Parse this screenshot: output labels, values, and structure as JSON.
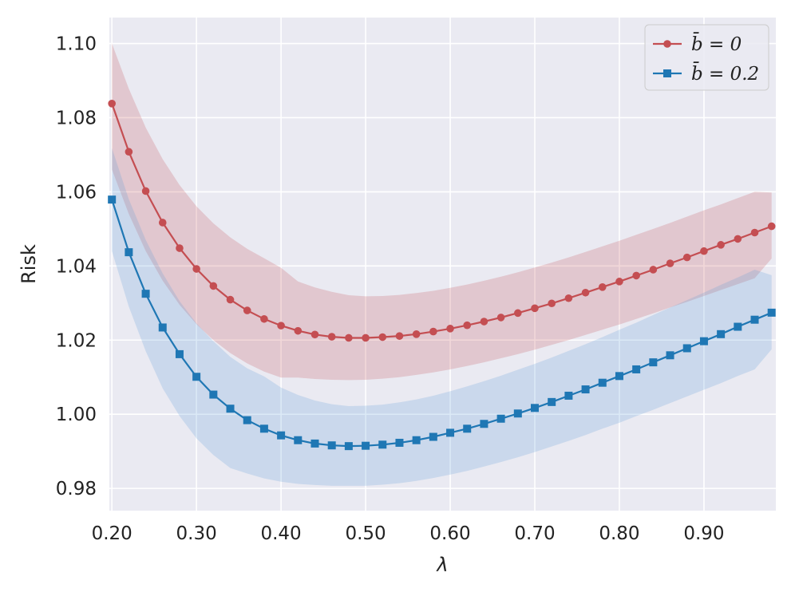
{
  "chart_data": {
    "type": "line",
    "title": "",
    "xlabel": "λ",
    "ylabel": "Risk",
    "xlim": [
      0.197,
      0.985
    ],
    "ylim": [
      0.974,
      1.107
    ],
    "xticks": [
      0.2,
      0.3,
      0.4,
      0.5,
      0.6,
      0.7,
      0.8,
      0.9
    ],
    "xtick_labels": [
      "0.20",
      "0.30",
      "0.40",
      "0.50",
      "0.60",
      "0.70",
      "0.80",
      "0.90"
    ],
    "yticks": [
      0.98,
      1.0,
      1.02,
      1.04,
      1.06,
      1.08,
      1.1
    ],
    "ytick_labels": [
      "0.98",
      "1.00",
      "1.02",
      "1.04",
      "1.06",
      "1.08",
      "1.10"
    ],
    "grid": true,
    "legend_position": "top-right",
    "x": [
      0.2,
      0.22,
      0.24,
      0.26,
      0.28,
      0.3,
      0.32,
      0.34,
      0.36,
      0.38,
      0.4,
      0.42,
      0.44,
      0.46,
      0.48,
      0.5,
      0.52,
      0.54,
      0.56,
      0.58,
      0.6,
      0.62,
      0.64,
      0.66,
      0.68,
      0.7,
      0.72,
      0.74,
      0.76,
      0.78,
      0.8,
      0.82,
      0.84,
      0.86,
      0.88,
      0.9,
      0.92,
      0.94,
      0.96,
      0.98
    ],
    "series": [
      {
        "name": "b̄ = 0",
        "legend_prefix": "b̄",
        "legend_suffix": "= 0",
        "color": "#c44e52",
        "band_color": "#c44e52",
        "marker": "circle",
        "values": [
          1.0838,
          1.0708,
          1.0602,
          1.0517,
          1.0448,
          1.0392,
          1.0346,
          1.0309,
          1.028,
          1.0257,
          1.0239,
          1.0225,
          1.0215,
          1.0209,
          1.0206,
          1.0206,
          1.0208,
          1.0211,
          1.0216,
          1.0223,
          1.0231,
          1.024,
          1.025,
          1.0261,
          1.0273,
          1.0286,
          1.0299,
          1.0313,
          1.0328,
          1.0343,
          1.0358,
          1.0374,
          1.039,
          1.0407,
          1.0423,
          1.044,
          1.0457,
          1.0473,
          1.049,
          1.0507
        ],
        "lower": [
          1.066,
          1.054,
          1.044,
          1.036,
          1.0295,
          1.0243,
          1.02,
          1.0165,
          1.0137,
          1.0115,
          1.0099,
          1.0099,
          1.0095,
          1.0093,
          1.0092,
          1.0093,
          1.0096,
          1.01,
          1.0106,
          1.0113,
          1.0121,
          1.013,
          1.014,
          1.0151,
          1.0162,
          1.0174,
          1.0187,
          1.02,
          1.0214,
          1.0228,
          1.0242,
          1.0257,
          1.0272,
          1.0288,
          1.0303,
          1.0319,
          1.0335,
          1.0351,
          1.0367,
          1.042
        ],
        "upper": [
          1.1,
          1.0878,
          1.0773,
          1.0688,
          1.0618,
          1.0561,
          1.0515,
          1.0477,
          1.0446,
          1.0421,
          1.0395,
          1.0358,
          1.0342,
          1.033,
          1.0321,
          1.0318,
          1.0319,
          1.0322,
          1.0327,
          1.0333,
          1.0341,
          1.035,
          1.036,
          1.0371,
          1.0383,
          1.0396,
          1.0409,
          1.0423,
          1.0438,
          1.0453,
          1.0468,
          1.0484,
          1.05,
          1.0516,
          1.0533,
          1.055,
          1.0566,
          1.0583,
          1.06,
          1.0598
        ]
      },
      {
        "name": "b̄ = 0.2",
        "legend_prefix": "b̄",
        "legend_suffix": "= 0.2",
        "color": "#1f77b4",
        "band_color": "#5a9bd5",
        "marker": "square",
        "values": [
          1.0579,
          1.0437,
          1.0325,
          1.0234,
          1.0162,
          1.0101,
          1.0053,
          1.0015,
          0.9984,
          0.9961,
          0.9943,
          0.993,
          0.9921,
          0.9916,
          0.9914,
          0.9915,
          0.9918,
          0.9923,
          0.993,
          0.9939,
          0.995,
          0.9961,
          0.9974,
          0.9988,
          1.0002,
          1.0017,
          1.0033,
          1.005,
          1.0067,
          1.0085,
          1.0103,
          1.0121,
          1.014,
          1.0159,
          1.0178,
          1.0197,
          1.0216,
          1.0236,
          1.0255,
          1.0274
        ],
        "lower": [
          1.044,
          1.029,
          1.017,
          1.007,
          0.9995,
          0.9935,
          0.989,
          0.9855,
          0.984,
          0.9827,
          0.9818,
          0.9812,
          0.9809,
          0.9807,
          0.9807,
          0.9807,
          0.981,
          0.9814,
          0.982,
          0.9828,
          0.9837,
          0.9847,
          0.9859,
          0.9871,
          0.9884,
          0.9898,
          0.9913,
          0.9928,
          0.9944,
          0.9961,
          0.9977,
          0.9995,
          1.0012,
          1.003,
          1.0048,
          1.0066,
          1.0084,
          1.0103,
          1.0121,
          1.0175
        ],
        "upper": [
          1.0718,
          1.058,
          1.047,
          1.038,
          1.0305,
          1.0245,
          1.0197,
          1.0155,
          1.0124,
          1.0102,
          1.0072,
          1.0052,
          1.0037,
          1.0027,
          1.0022,
          1.0023,
          1.0026,
          1.0032,
          1.004,
          1.005,
          1.0062,
          1.0075,
          1.0089,
          1.0104,
          1.012,
          1.0136,
          1.0153,
          1.0171,
          1.0189,
          1.0208,
          1.0228,
          1.0247,
          1.0268,
          1.0288,
          1.0308,
          1.0328,
          1.0349,
          1.0369,
          1.039,
          1.0375
        ]
      }
    ]
  }
}
